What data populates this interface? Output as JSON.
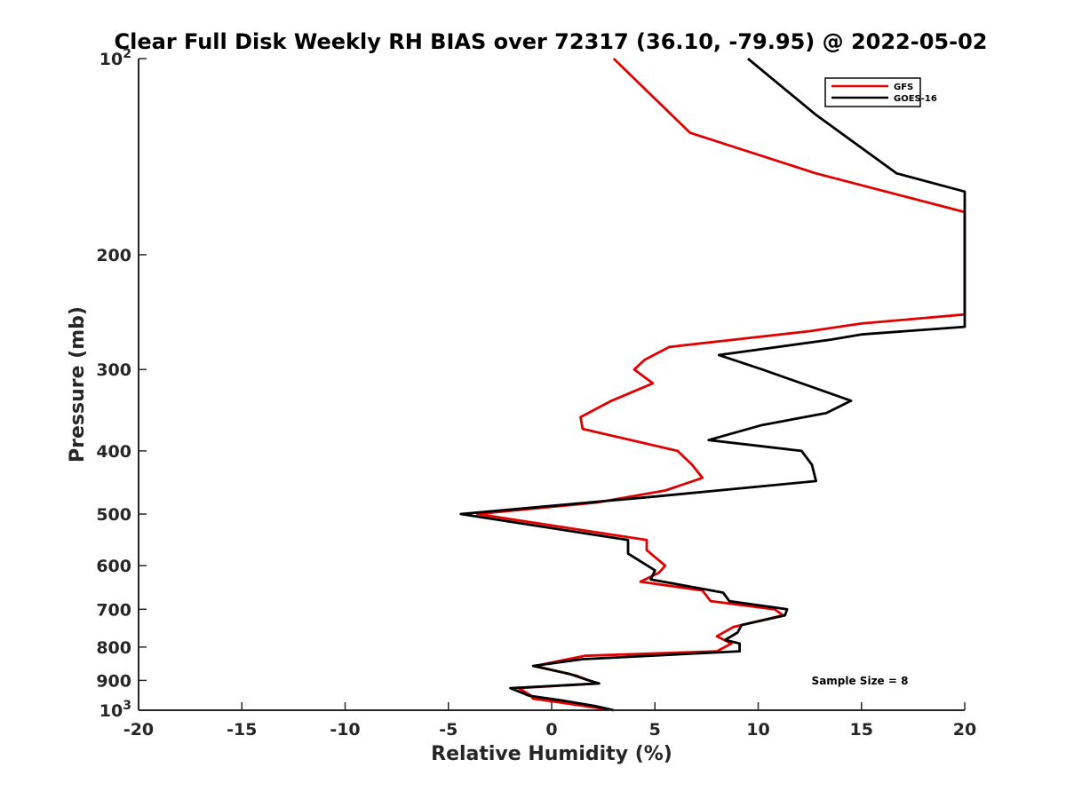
{
  "chart_data": {
    "type": "line",
    "title": "Clear Full Disk Weekly RH BIAS over 72317 (36.10, -79.95) @ 2022-05-02",
    "xlabel": "Relative Humidity (%)",
    "ylabel": "Pressure (mb)",
    "xlim": [
      -20,
      20
    ],
    "ylim": [
      100,
      1000
    ],
    "yscale": "log",
    "y_reversed": true,
    "xticks": [
      "-20",
      "-15",
      "-10",
      "-5",
      "0",
      "5",
      "10",
      "15",
      "20"
    ],
    "yticks": [
      {
        "value": 100,
        "base": "10",
        "exp": "2"
      },
      {
        "value": 200,
        "label": "200"
      },
      {
        "value": 300,
        "label": "300"
      },
      {
        "value": 400,
        "label": "400"
      },
      {
        "value": 500,
        "label": "500"
      },
      {
        "value": 600,
        "label": "600"
      },
      {
        "value": 700,
        "label": "700"
      },
      {
        "value": 800,
        "label": "800"
      },
      {
        "value": 900,
        "label": "900"
      },
      {
        "value": 1000,
        "base": "10",
        "exp": "3"
      }
    ],
    "grid": false,
    "legend_position": "top-right",
    "annotation": "Sample Size = 8",
    "series": [
      {
        "name": "GFS",
        "color": "#e00000",
        "points": [
          [
            3.0,
            100
          ],
          [
            6.7,
            130
          ],
          [
            12.8,
            150
          ],
          [
            20,
            172
          ],
          [
            20,
            247
          ],
          [
            15,
            255
          ],
          [
            12.5,
            262
          ],
          [
            5.7,
            277
          ],
          [
            4.5,
            290
          ],
          [
            4.0,
            300
          ],
          [
            4.9,
            315
          ],
          [
            2.9,
            335
          ],
          [
            1.4,
            355
          ],
          [
            1.5,
            370
          ],
          [
            6.1,
            400
          ],
          [
            6.8,
            420
          ],
          [
            7.3,
            440
          ],
          [
            5.5,
            460
          ],
          [
            2.2,
            480
          ],
          [
            -3.6,
            500
          ],
          [
            4.6,
            548
          ],
          [
            4.6,
            568
          ],
          [
            5.5,
            600
          ],
          [
            5.2,
            615
          ],
          [
            4.3,
            635
          ],
          [
            7.3,
            655
          ],
          [
            7.7,
            680
          ],
          [
            10.8,
            700
          ],
          [
            11.2,
            715
          ],
          [
            8.8,
            745
          ],
          [
            8.0,
            770
          ],
          [
            8.7,
            790
          ],
          [
            8.0,
            812
          ],
          [
            1.6,
            825
          ],
          [
            -0.8,
            855
          ],
          [
            1.2,
            885
          ],
          [
            2.2,
            910
          ],
          [
            -1.6,
            925
          ],
          [
            -1.0,
            950
          ],
          [
            -0.9,
            960
          ],
          [
            0.6,
            975
          ],
          [
            3.0,
            1000
          ]
        ]
      },
      {
        "name": "GOES-16",
        "color": "#000000",
        "points": [
          [
            9.5,
            100
          ],
          [
            12.8,
            122
          ],
          [
            16.7,
            150
          ],
          [
            20,
            160
          ],
          [
            20,
            258
          ],
          [
            15,
            265
          ],
          [
            13.5,
            270
          ],
          [
            8.1,
            285
          ],
          [
            10.2,
            300
          ],
          [
            14.5,
            335
          ],
          [
            13.3,
            350
          ],
          [
            10.2,
            365
          ],
          [
            7.6,
            385
          ],
          [
            12.1,
            400
          ],
          [
            12.6,
            420
          ],
          [
            12.8,
            445
          ],
          [
            5.0,
            470
          ],
          [
            -4.4,
            500
          ],
          [
            3.7,
            548
          ],
          [
            3.7,
            575
          ],
          [
            5.0,
            610
          ],
          [
            4.8,
            630
          ],
          [
            8.3,
            660
          ],
          [
            8.6,
            680
          ],
          [
            11.4,
            700
          ],
          [
            11.3,
            715
          ],
          [
            9.2,
            740
          ],
          [
            9.0,
            760
          ],
          [
            8.4,
            780
          ],
          [
            9.1,
            790
          ],
          [
            9.1,
            812
          ],
          [
            1.5,
            835
          ],
          [
            -0.9,
            855
          ],
          [
            0.9,
            880
          ],
          [
            1.7,
            898
          ],
          [
            2.3,
            910
          ],
          [
            -2.0,
            925
          ],
          [
            -1.1,
            950
          ],
          [
            0.4,
            965
          ],
          [
            2.1,
            985
          ],
          [
            3.0,
            1000
          ]
        ]
      }
    ]
  }
}
